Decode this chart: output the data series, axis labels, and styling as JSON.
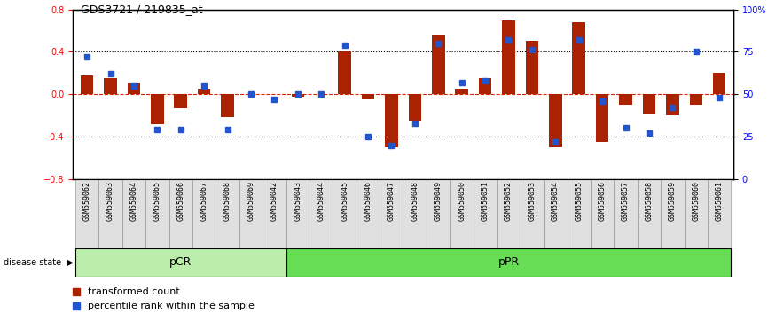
{
  "title": "GDS3721 / 219835_at",
  "samples": [
    "GSM559062",
    "GSM559063",
    "GSM559064",
    "GSM559065",
    "GSM559066",
    "GSM559067",
    "GSM559068",
    "GSM559069",
    "GSM559042",
    "GSM559043",
    "GSM559044",
    "GSM559045",
    "GSM559046",
    "GSM559047",
    "GSM559048",
    "GSM559049",
    "GSM559050",
    "GSM559051",
    "GSM559052",
    "GSM559053",
    "GSM559054",
    "GSM559055",
    "GSM559056",
    "GSM559057",
    "GSM559058",
    "GSM559059",
    "GSM559060",
    "GSM559061"
  ],
  "bar_values": [
    0.18,
    0.15,
    0.1,
    -0.28,
    -0.13,
    0.05,
    -0.22,
    0.0,
    0.0,
    -0.02,
    0.0,
    0.4,
    -0.05,
    -0.5,
    -0.25,
    0.55,
    0.05,
    0.15,
    0.7,
    0.5,
    -0.5,
    0.68,
    -0.45,
    -0.1,
    -0.18,
    -0.2,
    -0.1,
    0.2
  ],
  "percentile_values": [
    72,
    62,
    55,
    29,
    29,
    55,
    29,
    50,
    47,
    50,
    50,
    79,
    25,
    20,
    33,
    80,
    57,
    58,
    82,
    76,
    22,
    82,
    46,
    30,
    27,
    42,
    75,
    48
  ],
  "pCR_count": 9,
  "pPR_count": 19,
  "bar_color": "#aa2200",
  "dot_color": "#2255cc",
  "background_color": "#ffffff",
  "pCR_color": "#bbeeaa",
  "pPR_color": "#66dd55",
  "ylim": [
    -0.8,
    0.8
  ],
  "yticks_left": [
    -0.8,
    -0.4,
    0.0,
    0.4,
    0.8
  ],
  "yticks_right_pct": [
    0,
    25,
    50,
    75,
    100
  ],
  "hlines": [
    -0.4,
    0.0,
    0.4
  ]
}
